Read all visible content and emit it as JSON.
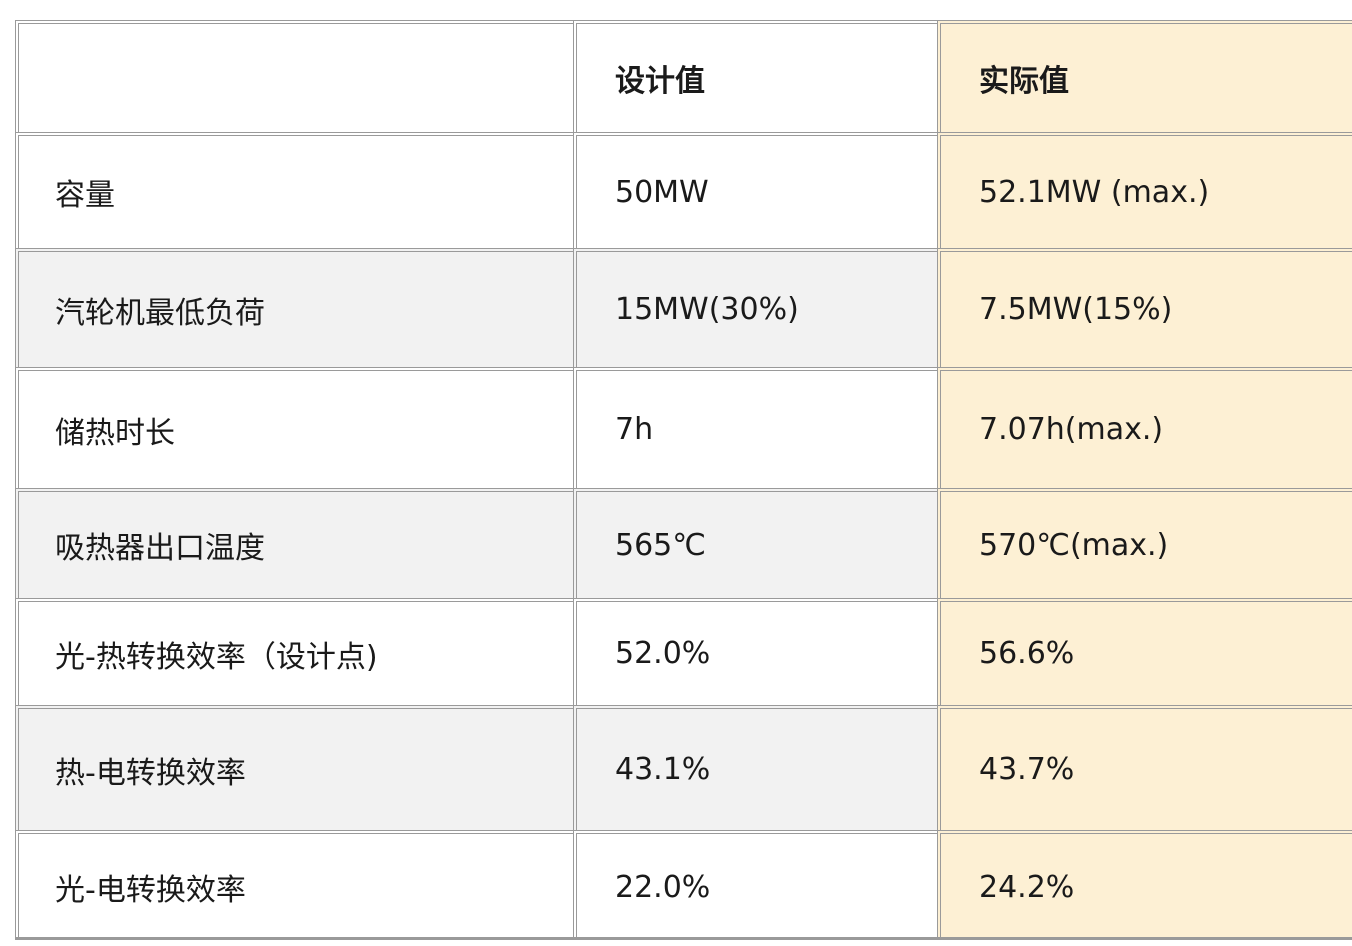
{
  "table": {
    "header": [
      "设计值",
      "实际值"
    ],
    "rows": [
      [
        "容量",
        "50MW",
        "52.1MW (max.)"
      ],
      [
        "汽轮机最低负荷",
        "15MW(30%)",
        "7.5MW(15%)"
      ],
      [
        "储热时长",
        "7h",
        "7.07h(max.)"
      ],
      [
        "吸热器出口温度",
        "565℃",
        "570℃(max.)"
      ],
      [
        "光-热转换效率（设计点)",
        "52.0%",
        "56.6%"
      ],
      [
        "热-电转换效率",
        "43.1%",
        "43.7%"
      ],
      [
        "光-电转换效率",
        "22.0%",
        "24.2%"
      ]
    ]
  }
}
